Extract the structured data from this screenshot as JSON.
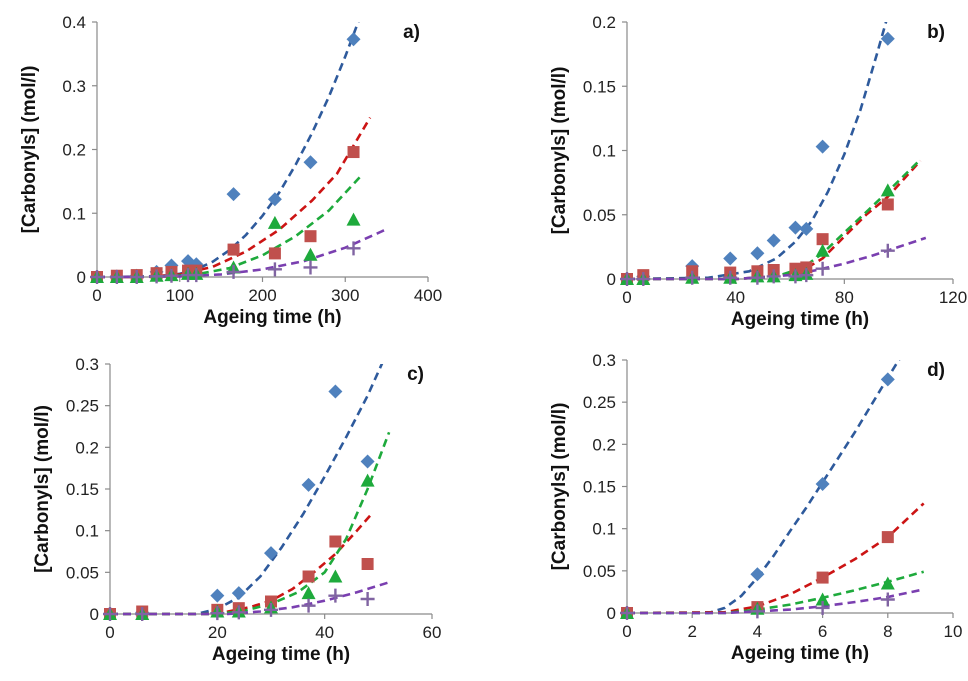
{
  "colors": {
    "diamond": "#4F81BD",
    "square": "#C0504D",
    "triangle": "#1EAA3C",
    "plus": "#8064A2",
    "fit_blue": "#2E5A9C",
    "fit_red": "#CC1414",
    "fit_green": "#1EAA3C",
    "fit_purple": "#7A3FB0"
  },
  "chart_data": [
    {
      "type": "scatter",
      "panel_label": "a)",
      "xlabel": "Ageing time (h)",
      "ylabel": "[Carbonyls] (mol/l)",
      "xlim": [
        0,
        400
      ],
      "ylim": [
        0,
        0.4
      ],
      "xticks": [
        "0",
        "100",
        "200",
        "300",
        "400"
      ],
      "yticks": [
        "0",
        "0.1",
        "0.2",
        "0.3",
        "0.4"
      ],
      "xtick_values": [
        0,
        100,
        200,
        300,
        400
      ],
      "ytick_values": [
        0,
        0.1,
        0.2,
        0.3,
        0.4
      ],
      "series": [
        {
          "marker": "diamond",
          "color": "#4F81BD",
          "x": [
            0,
            24,
            48,
            72,
            90,
            110,
            120,
            165,
            215,
            258,
            310
          ],
          "y": [
            0,
            0.001,
            0.002,
            0.008,
            0.018,
            0.025,
            0.02,
            0.13,
            0.122,
            0.18,
            0.373
          ]
        },
        {
          "marker": "square",
          "color": "#C0504D",
          "x": [
            0,
            24,
            48,
            72,
            90,
            110,
            120,
            165,
            215,
            258,
            310
          ],
          "y": [
            0,
            0.002,
            0.003,
            0.006,
            0.008,
            0.01,
            0.01,
            0.043,
            0.037,
            0.064,
            0.196
          ]
        },
        {
          "marker": "triangle",
          "color": "#1EAA3C",
          "x": [
            0,
            24,
            48,
            72,
            90,
            110,
            120,
            165,
            215,
            258,
            310
          ],
          "y": [
            0,
            0,
            0,
            0.002,
            0.003,
            0.005,
            0.005,
            0.015,
            0.085,
            0.035,
            0.09
          ]
        },
        {
          "marker": "plus",
          "color": "#8064A2",
          "x": [
            0,
            24,
            48,
            72,
            90,
            110,
            120,
            165,
            215,
            258,
            310
          ],
          "y": [
            0,
            0,
            0,
            0.001,
            0.002,
            0.003,
            0.003,
            0.008,
            0.012,
            0.015,
            0.045
          ]
        }
      ],
      "fits": [
        {
          "color": "#2E5A9C",
          "x": [
            0,
            40,
            80,
            100,
            120,
            140,
            160,
            180,
            200,
            220,
            240,
            260,
            280,
            300,
            320
          ],
          "y": [
            0,
            0,
            0.002,
            0.005,
            0.012,
            0.024,
            0.042,
            0.066,
            0.096,
            0.132,
            0.176,
            0.226,
            0.282,
            0.346,
            0.415
          ]
        },
        {
          "color": "#CC1414",
          "x": [
            0,
            60,
            100,
            140,
            180,
            220,
            260,
            290,
            330
          ],
          "y": [
            0,
            0,
            0.004,
            0.016,
            0.04,
            0.074,
            0.12,
            0.162,
            0.25
          ]
        },
        {
          "color": "#1EAA3C",
          "x": [
            0,
            80,
            120,
            160,
            200,
            240,
            280,
            320
          ],
          "y": [
            0,
            0.001,
            0.004,
            0.014,
            0.034,
            0.064,
            0.104,
            0.16
          ]
        },
        {
          "color": "#7A3FB0",
          "x": [
            0,
            100,
            150,
            200,
            250,
            300,
            350
          ],
          "y": [
            0,
            0.001,
            0.004,
            0.012,
            0.025,
            0.046,
            0.075
          ]
        }
      ]
    },
    {
      "type": "scatter",
      "panel_label": "b)",
      "xlabel": "Ageing time (h)",
      "ylabel": "[Carbonyls] (mol/l)",
      "xlim": [
        0,
        120
      ],
      "ylim": [
        0,
        0.2
      ],
      "xticks": [
        "0",
        "40",
        "80",
        "120"
      ],
      "yticks": [
        "0",
        "0.05",
        "0.1",
        "0.15",
        "0.2"
      ],
      "xtick_values": [
        0,
        40,
        80,
        120
      ],
      "ytick_values": [
        0,
        0.05,
        0.1,
        0.15,
        0.2
      ],
      "series": [
        {
          "marker": "diamond",
          "color": "#4F81BD",
          "x": [
            0,
            6,
            24,
            38,
            48,
            54,
            62,
            66,
            72,
            96
          ],
          "y": [
            0,
            0.002,
            0.01,
            0.016,
            0.02,
            0.03,
            0.04,
            0.039,
            0.103,
            0.187
          ]
        },
        {
          "marker": "square",
          "color": "#C0504D",
          "x": [
            0,
            6,
            24,
            38,
            48,
            54,
            62,
            66,
            72,
            96
          ],
          "y": [
            0,
            0.003,
            0.006,
            0.005,
            0.006,
            0.007,
            0.008,
            0.009,
            0.031,
            0.058
          ]
        },
        {
          "marker": "triangle",
          "color": "#1EAA3C",
          "x": [
            0,
            6,
            24,
            38,
            48,
            54,
            62,
            66,
            72,
            96
          ],
          "y": [
            0,
            0,
            0.001,
            0.001,
            0.002,
            0.002,
            0.003,
            0.004,
            0.022,
            0.069
          ]
        },
        {
          "marker": "plus",
          "color": "#8064A2",
          "x": [
            0,
            6,
            24,
            38,
            48,
            54,
            62,
            66,
            72,
            96
          ],
          "y": [
            0,
            0,
            0.001,
            0.001,
            0.001,
            0.002,
            0.002,
            0.003,
            0.008,
            0.022
          ]
        }
      ],
      "fits": [
        {
          "color": "#2E5A9C",
          "x": [
            0,
            30,
            45,
            55,
            62,
            68,
            74,
            80,
            86,
            92,
            96
          ],
          "y": [
            0,
            0.001,
            0.006,
            0.016,
            0.029,
            0.045,
            0.068,
            0.097,
            0.132,
            0.175,
            0.205
          ]
        },
        {
          "color": "#CC1414",
          "x": [
            0,
            40,
            55,
            65,
            72,
            80,
            88,
            96,
            108
          ],
          "y": [
            0,
            0,
            0.002,
            0.007,
            0.016,
            0.033,
            0.05,
            0.064,
            0.092
          ]
        },
        {
          "color": "#1EAA3C",
          "x": [
            0,
            40,
            55,
            65,
            72,
            80,
            88,
            96,
            108
          ],
          "y": [
            0,
            0,
            0.002,
            0.009,
            0.02,
            0.036,
            0.052,
            0.068,
            0.093
          ]
        },
        {
          "color": "#7A3FB0",
          "x": [
            0,
            40,
            60,
            70,
            80,
            90,
            100,
            110
          ],
          "y": [
            0,
            0,
            0.003,
            0.007,
            0.012,
            0.018,
            0.025,
            0.032
          ]
        }
      ]
    },
    {
      "type": "scatter",
      "panel_label": "c)",
      "xlabel": "Ageing time (h)",
      "ylabel": "[Carbonyls] (mol/l)",
      "xlim": [
        0,
        60
      ],
      "ylim": [
        0,
        0.3
      ],
      "xticks": [
        "0",
        "20",
        "40",
        "60"
      ],
      "yticks": [
        "0",
        "0.05",
        "0.1",
        "0.15",
        "0.2",
        "0.25",
        "0.3"
      ],
      "xtick_values": [
        0,
        20,
        40,
        60
      ],
      "ytick_values": [
        0,
        0.05,
        0.1,
        0.15,
        0.2,
        0.25,
        0.3
      ],
      "series": [
        {
          "marker": "diamond",
          "color": "#4F81BD",
          "x": [
            0,
            6,
            20,
            24,
            30,
            37,
            42,
            48
          ],
          "y": [
            0,
            0.002,
            0.022,
            0.025,
            0.073,
            0.155,
            0.267,
            0.183
          ]
        },
        {
          "marker": "square",
          "color": "#C0504D",
          "x": [
            0,
            6,
            20,
            24,
            30,
            37,
            42,
            48
          ],
          "y": [
            0,
            0.003,
            0.005,
            0.007,
            0.015,
            0.045,
            0.087,
            0.06
          ]
        },
        {
          "marker": "triangle",
          "color": "#1EAA3C",
          "x": [
            0,
            6,
            20,
            24,
            30,
            37,
            42,
            48
          ],
          "y": [
            0,
            0,
            0.003,
            0.003,
            0.008,
            0.025,
            0.045,
            0.16
          ]
        },
        {
          "marker": "plus",
          "color": "#8064A2",
          "x": [
            0,
            6,
            20,
            24,
            30,
            37,
            42,
            48
          ],
          "y": [
            0,
            0,
            0.001,
            0.002,
            0.005,
            0.01,
            0.022,
            0.018
          ]
        }
      ],
      "fits": [
        {
          "color": "#2E5A9C",
          "x": [
            0,
            16,
            20,
            24,
            28,
            32,
            36,
            40,
            44,
            48,
            51
          ],
          "y": [
            0,
            0,
            0.006,
            0.02,
            0.045,
            0.08,
            0.12,
            0.165,
            0.212,
            0.262,
            0.305
          ]
        },
        {
          "color": "#CC1414",
          "x": [
            0,
            18,
            22,
            26,
            30,
            34,
            38,
            42,
            46,
            49
          ],
          "y": [
            0,
            0,
            0.003,
            0.008,
            0.016,
            0.03,
            0.05,
            0.072,
            0.1,
            0.122
          ]
        },
        {
          "color": "#1EAA3C",
          "x": [
            0,
            20,
            25,
            30,
            35,
            40,
            44,
            48,
            52
          ],
          "y": [
            0,
            0,
            0.004,
            0.012,
            0.026,
            0.05,
            0.09,
            0.15,
            0.218
          ]
        },
        {
          "color": "#7A3FB0",
          "x": [
            0,
            22,
            28,
            34,
            40,
            46,
            52
          ],
          "y": [
            0,
            0,
            0.003,
            0.008,
            0.016,
            0.026,
            0.038
          ]
        }
      ]
    },
    {
      "type": "scatter",
      "panel_label": "d)",
      "xlabel": "Ageing time (h)",
      "ylabel": "[Carbonyls] (mol/l)",
      "xlim": [
        0,
        10
      ],
      "ylim": [
        0,
        0.3
      ],
      "xticks": [
        "0",
        "2",
        "4",
        "6",
        "8",
        "10"
      ],
      "yticks": [
        "0",
        "0.05",
        "0.1",
        "0.15",
        "0.2",
        "0.25",
        "0.3"
      ],
      "xtick_values": [
        0,
        2,
        4,
        6,
        8,
        10
      ],
      "ytick_values": [
        0,
        0.05,
        0.1,
        0.15,
        0.2,
        0.25,
        0.3
      ],
      "series": [
        {
          "marker": "diamond",
          "color": "#4F81BD",
          "x": [
            0,
            4,
            6,
            8
          ],
          "y": [
            0,
            0.046,
            0.153,
            0.277
          ]
        },
        {
          "marker": "square",
          "color": "#C0504D",
          "x": [
            0,
            4,
            6,
            8
          ],
          "y": [
            0,
            0.007,
            0.042,
            0.09
          ]
        },
        {
          "marker": "triangle",
          "color": "#1EAA3C",
          "x": [
            0,
            4,
            6,
            8
          ],
          "y": [
            0,
            0.005,
            0.016,
            0.035
          ]
        },
        {
          "marker": "plus",
          "color": "#8064A2",
          "x": [
            0,
            4,
            6,
            8
          ],
          "y": [
            0,
            0.002,
            0.006,
            0.016
          ]
        }
      ],
      "fits": [
        {
          "color": "#2E5A9C",
          "x": [
            0,
            2.5,
            3,
            3.5,
            4,
            4.5,
            5,
            5.5,
            6,
            6.5,
            7,
            7.5,
            8,
            8.5
          ],
          "y": [
            0,
            0,
            0.006,
            0.02,
            0.042,
            0.068,
            0.097,
            0.125,
            0.155,
            0.185,
            0.215,
            0.247,
            0.279,
            0.31
          ]
        },
        {
          "color": "#CC1414",
          "x": [
            0,
            3,
            4,
            5,
            6,
            7,
            8,
            9.1
          ],
          "y": [
            0,
            0.001,
            0.008,
            0.022,
            0.042,
            0.064,
            0.09,
            0.13
          ]
        },
        {
          "color": "#1EAA3C",
          "x": [
            0,
            3,
            4,
            5,
            6,
            7,
            8,
            9.1
          ],
          "y": [
            0,
            0,
            0.004,
            0.01,
            0.018,
            0.027,
            0.037,
            0.049
          ]
        },
        {
          "color": "#7A3FB0",
          "x": [
            0,
            3,
            4,
            5,
            6,
            7,
            8,
            9.1
          ],
          "y": [
            0,
            0,
            0.002,
            0.004,
            0.008,
            0.013,
            0.019,
            0.028
          ]
        }
      ]
    }
  ]
}
